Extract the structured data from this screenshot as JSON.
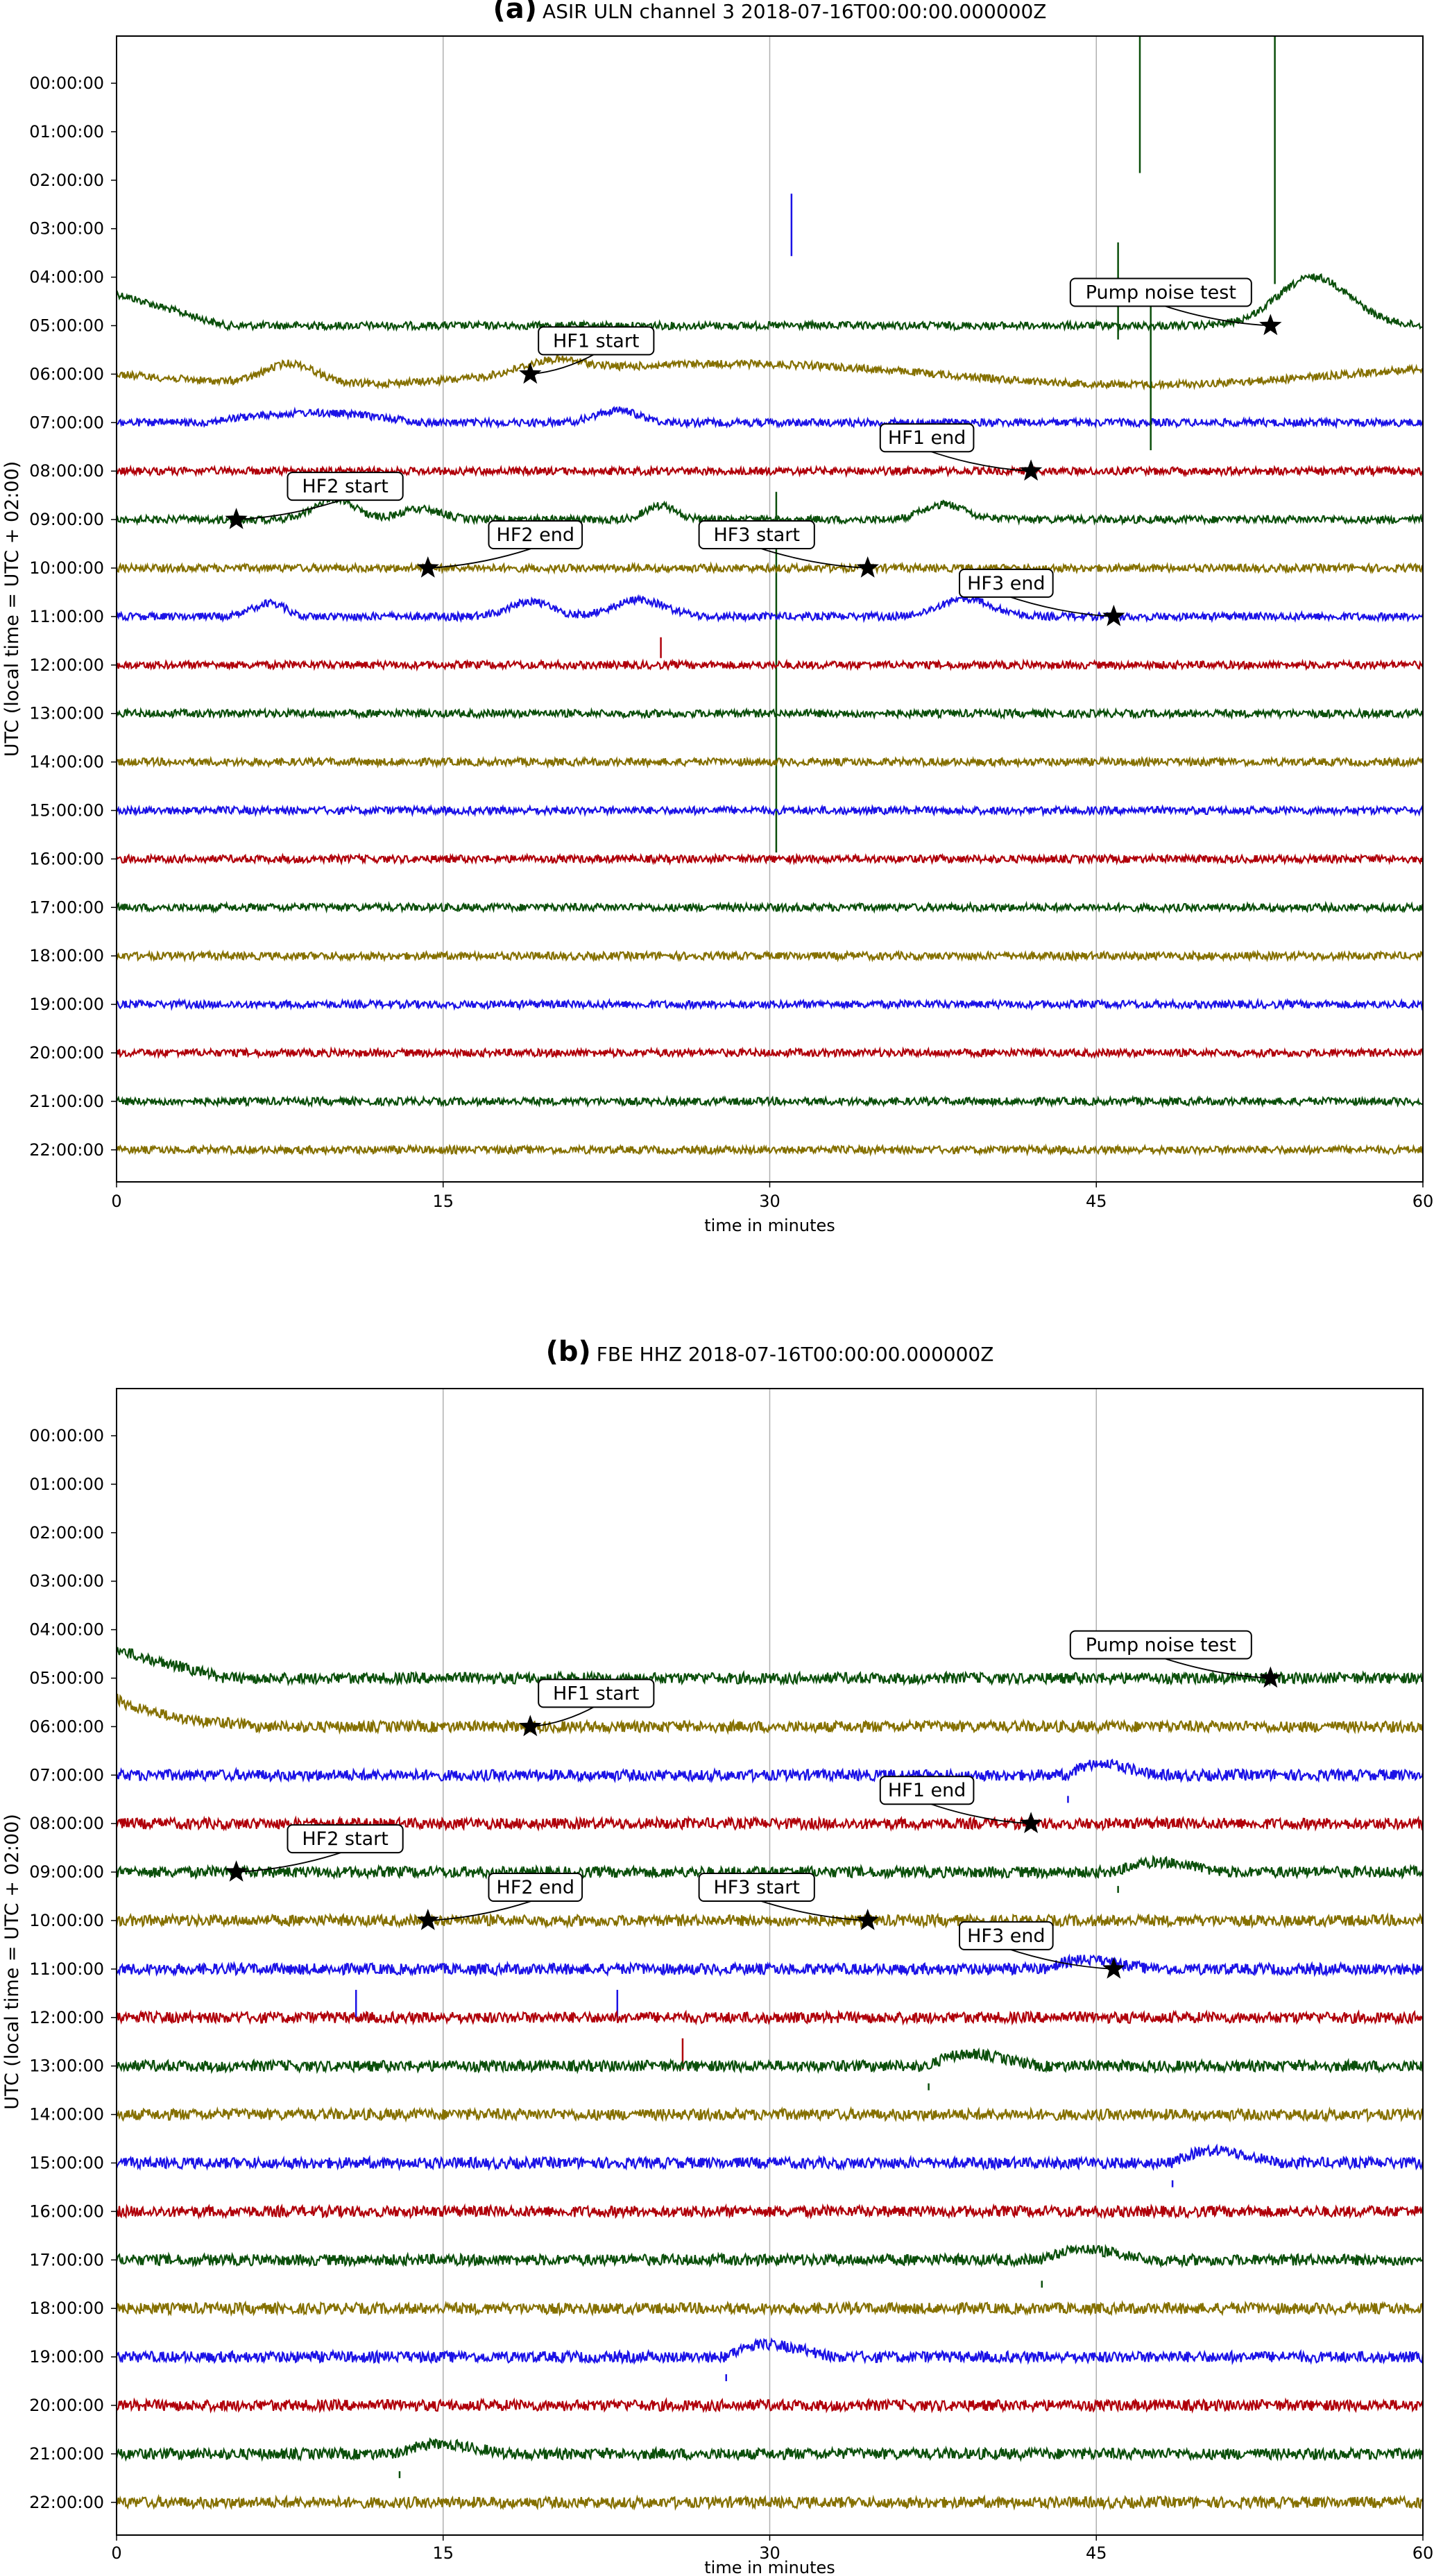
{
  "colors": {
    "green": "#0b4f0b",
    "olive": "#857000",
    "blue": "#1b12e6",
    "red": "#b0000a",
    "grid": "#b0b0b0"
  },
  "chart_data": [
    {
      "type": "line",
      "panel_letter": "(a)",
      "title": "ASIR ULN channel 3 2018-07-16T00:00:00.000000Z",
      "xlabel": "time in minutes",
      "ylabel": "UTC (local time = UTC + 02:00)",
      "xlim": [
        0,
        60
      ],
      "xticks": [
        "0",
        "15",
        "30",
        "45",
        "60"
      ],
      "grid": "vertical at 15, 30, 45",
      "trace_color_cycle": [
        "green",
        "olive",
        "blue",
        "red"
      ],
      "rows": [
        "00:00:00",
        "01:00:00",
        "02:00:00",
        "03:00:00",
        "04:00:00",
        "05:00:00",
        "06:00:00",
        "07:00:00",
        "08:00:00",
        "09:00:00",
        "10:00:00",
        "11:00:00",
        "12:00:00",
        "13:00:00",
        "14:00:00",
        "15:00:00",
        "16:00:00",
        "17:00:00",
        "18:00:00",
        "19:00:00",
        "20:00:00",
        "21:00:00",
        "22:00:00"
      ],
      "traces_start_row": "05:00:00",
      "annotations": [
        {
          "label": "Pump noise test",
          "row": "05:00:00",
          "minute": 53
        },
        {
          "label": "HF1 start",
          "row": "06:00:00",
          "minute": 19
        },
        {
          "label": "HF1 end",
          "row": "08:00:00",
          "minute": 42
        },
        {
          "label": "HF2 start",
          "row": "09:00:00",
          "minute": 5.5
        },
        {
          "label": "HF2 end",
          "row": "10:00:00",
          "minute": 14.3
        },
        {
          "label": "HF3 start",
          "row": "10:00:00",
          "minute": 34.5
        },
        {
          "label": "HF3 end",
          "row": "11:00:00",
          "minute": 45.8
        }
      ]
    },
    {
      "type": "line",
      "panel_letter": "(b)",
      "title": "FBE HHZ 2018-07-16T00:00:00.000000Z",
      "xlabel": "time in minutes",
      "ylabel": "UTC (local time = UTC + 02:00)",
      "xlim": [
        0,
        60
      ],
      "xticks": [
        "0",
        "15",
        "30",
        "45",
        "60"
      ],
      "grid": "vertical at 15, 30, 45",
      "trace_color_cycle": [
        "green",
        "olive",
        "blue",
        "red"
      ],
      "rows": [
        "00:00:00",
        "01:00:00",
        "02:00:00",
        "03:00:00",
        "04:00:00",
        "05:00:00",
        "06:00:00",
        "07:00:00",
        "08:00:00",
        "09:00:00",
        "10:00:00",
        "11:00:00",
        "12:00:00",
        "13:00:00",
        "14:00:00",
        "15:00:00",
        "16:00:00",
        "17:00:00",
        "18:00:00",
        "19:00:00",
        "20:00:00",
        "21:00:00",
        "22:00:00"
      ],
      "traces_start_row": "05:00:00",
      "annotations": [
        {
          "label": "Pump noise test",
          "row": "05:00:00",
          "minute": 53
        },
        {
          "label": "HF1 start",
          "row": "06:00:00",
          "minute": 19
        },
        {
          "label": "HF1 end",
          "row": "08:00:00",
          "minute": 42
        },
        {
          "label": "HF2 start",
          "row": "09:00:00",
          "minute": 5.5
        },
        {
          "label": "HF2 end",
          "row": "10:00:00",
          "minute": 14.3
        },
        {
          "label": "HF3 start",
          "row": "10:00:00",
          "minute": 34.5
        },
        {
          "label": "HF3 end",
          "row": "11:00:00",
          "minute": 45.8
        }
      ]
    }
  ]
}
